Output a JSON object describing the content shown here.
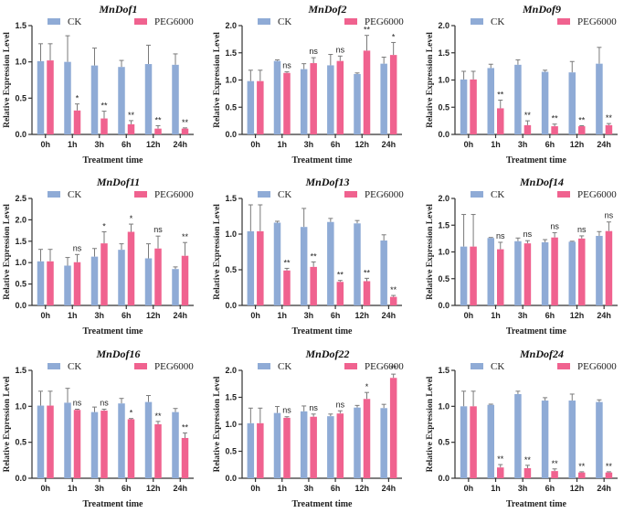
{
  "colors": {
    "CK": "#8fabd6",
    "PEG6000": "#f0628f"
  },
  "chart_data": [
    {
      "type": "bar",
      "title": "MnDof1",
      "xlabel": "Treatment time",
      "ylabel": "Relative Expression Level",
      "categories": [
        "0h",
        "1h",
        "3h",
        "6h",
        "12h",
        "24h"
      ],
      "ylim": [
        0,
        1.5
      ],
      "yticks": [
        "0.0",
        "0.5",
        "1.0",
        "1.5"
      ],
      "yticks_values": [
        0,
        0.5,
        1.0,
        1.5
      ],
      "legend": [
        "CK",
        "PEG6000"
      ],
      "legend_position": "top",
      "grid": false,
      "series": [
        {
          "name": "CK",
          "values": [
            1.01,
            1.0,
            0.95,
            0.93,
            0.97,
            0.96
          ],
          "errors": [
            0.24,
            0.36,
            0.24,
            0.09,
            0.26,
            0.15
          ]
        },
        {
          "name": "PEG6000",
          "values": [
            1.02,
            0.33,
            0.22,
            0.14,
            0.08,
            0.08
          ],
          "errors": [
            0.23,
            0.09,
            0.1,
            0.05,
            0.04,
            0.01
          ]
        }
      ],
      "significance": [
        "",
        "*",
        "**",
        "**",
        "**",
        "**"
      ]
    },
    {
      "type": "bar",
      "title": "MnDof2",
      "xlabel": "Treatment time",
      "ylabel": "Relative Expression Level",
      "categories": [
        "0h",
        "1h",
        "3h",
        "6h",
        "12h",
        "24h"
      ],
      "ylim": [
        0,
        2.0
      ],
      "yticks": [
        "0.0",
        "0.5",
        "1.0",
        "1.5",
        "2.0"
      ],
      "yticks_values": [
        0,
        0.5,
        1.0,
        1.5,
        2.0
      ],
      "legend": [
        "CK",
        "PEG6000"
      ],
      "legend_position": "top",
      "grid": false,
      "series": [
        {
          "name": "CK",
          "values": [
            0.98,
            1.35,
            1.2,
            1.27,
            1.11,
            1.3
          ],
          "errors": [
            0.2,
            0.02,
            0.1,
            0.2,
            0.02,
            0.12
          ]
        },
        {
          "name": "PEG6000",
          "values": [
            0.98,
            1.13,
            1.31,
            1.35,
            1.54,
            1.46
          ],
          "errors": [
            0.2,
            0.02,
            0.1,
            0.09,
            0.28,
            0.23
          ]
        }
      ],
      "significance": [
        "",
        "ns",
        "ns",
        "ns",
        "**",
        "*"
      ]
    },
    {
      "type": "bar",
      "title": "MnDof9",
      "xlabel": "Treatment time",
      "ylabel": "Relative Expression Level",
      "categories": [
        "0h",
        "1h",
        "3h",
        "6h",
        "12h",
        "24h"
      ],
      "ylim": [
        0,
        2.0
      ],
      "yticks": [
        "0.0",
        "0.5",
        "1.0",
        "1.5",
        "2.0"
      ],
      "yticks_values": [
        0,
        0.5,
        1.0,
        1.5,
        2.0
      ],
      "legend": [
        "CK",
        "PEG6000"
      ],
      "legend_position": "top",
      "grid": false,
      "series": [
        {
          "name": "CK",
          "values": [
            1.01,
            1.22,
            1.28,
            1.15,
            1.14,
            1.3
          ],
          "errors": [
            0.15,
            0.07,
            0.09,
            0.03,
            0.2,
            0.3
          ]
        },
        {
          "name": "PEG6000",
          "values": [
            1.01,
            0.48,
            0.17,
            0.15,
            0.15,
            0.17
          ],
          "errors": [
            0.15,
            0.15,
            0.08,
            0.04,
            0.01,
            0.03
          ]
        }
      ],
      "significance": [
        "",
        "**",
        "**",
        "**",
        "**",
        "**"
      ]
    },
    {
      "type": "bar",
      "title": "MnDof11",
      "xlabel": "Treatment time",
      "ylabel": "Relative Expression Level",
      "categories": [
        "0h",
        "1h",
        "3h",
        "6h",
        "12h",
        "24h"
      ],
      "ylim": [
        0,
        2.5
      ],
      "yticks": [
        "0.0",
        "0.5",
        "1.0",
        "1.5",
        "2.0",
        "2.5"
      ],
      "yticks_values": [
        0,
        0.5,
        1.0,
        1.5,
        2.0,
        2.5
      ],
      "legend": [
        "CK",
        "PEG6000"
      ],
      "legend_position": "top",
      "grid": false,
      "series": [
        {
          "name": "CK",
          "values": [
            1.03,
            0.93,
            1.14,
            1.3,
            1.1,
            0.85
          ],
          "errors": [
            0.28,
            0.19,
            0.19,
            0.14,
            0.34,
            0.05
          ]
        },
        {
          "name": "PEG6000",
          "values": [
            1.03,
            1.01,
            1.45,
            1.72,
            1.33,
            1.16
          ],
          "errors": [
            0.28,
            0.18,
            0.27,
            0.18,
            0.29,
            0.31
          ]
        }
      ],
      "significance": [
        "",
        "ns",
        "*",
        "*",
        "ns",
        "**"
      ]
    },
    {
      "type": "bar",
      "title": "MnDof13",
      "xlabel": "Treatment time",
      "ylabel": "Relative Expression Level",
      "categories": [
        "0h",
        "1h",
        "3h",
        "6h",
        "12h",
        "24h"
      ],
      "ylim": [
        0,
        1.5
      ],
      "yticks": [
        "0.0",
        "0.5",
        "1.0",
        "1.5"
      ],
      "yticks_values": [
        0,
        0.5,
        1.0,
        1.5
      ],
      "legend": [
        "CK",
        "PEG6000"
      ],
      "legend_position": "top",
      "grid": false,
      "series": [
        {
          "name": "CK",
          "values": [
            1.04,
            1.16,
            1.1,
            1.17,
            1.15,
            0.91
          ],
          "errors": [
            0.37,
            0.02,
            0.26,
            0.05,
            0.04,
            0.08
          ]
        },
        {
          "name": "PEG6000",
          "values": [
            1.04,
            0.49,
            0.54,
            0.33,
            0.34,
            0.12
          ],
          "errors": [
            0.37,
            0.03,
            0.07,
            0.02,
            0.04,
            0.02
          ]
        }
      ],
      "significance": [
        "",
        "**",
        "**",
        "**",
        "**",
        "**"
      ]
    },
    {
      "type": "bar",
      "title": "MnDof14",
      "xlabel": "Treatment time",
      "ylabel": "Relative Expression Level",
      "categories": [
        "0h",
        "1h",
        "3h",
        "6h",
        "12h",
        "24h"
      ],
      "ylim": [
        0,
        2.0
      ],
      "yticks": [
        "0.0",
        "0.5",
        "1.0",
        "1.5",
        "2.0"
      ],
      "yticks_values": [
        0,
        0.5,
        1.0,
        1.5,
        2.0
      ],
      "legend": [
        "CK",
        "PEG6000"
      ],
      "legend_position": "top",
      "grid": false,
      "series": [
        {
          "name": "CK",
          "values": [
            1.1,
            1.26,
            1.2,
            1.18,
            1.19,
            1.3
          ],
          "errors": [
            0.6,
            0.01,
            0.06,
            0.05,
            0.01,
            0.08
          ]
        },
        {
          "name": "PEG6000",
          "values": [
            1.1,
            1.05,
            1.16,
            1.27,
            1.25,
            1.39
          ],
          "errors": [
            0.6,
            0.13,
            0.05,
            0.09,
            0.05,
            0.17
          ]
        }
      ],
      "significance": [
        "",
        "ns",
        "ns",
        "ns",
        "ns",
        "ns"
      ]
    },
    {
      "type": "bar",
      "title": "MnDof16",
      "xlabel": "Treatment time",
      "ylabel": "Relative Expression Level",
      "categories": [
        "0h",
        "1h",
        "3h",
        "6h",
        "12h",
        "24h"
      ],
      "ylim": [
        0,
        1.5
      ],
      "yticks": [
        "0.0",
        "0.5",
        "1.0",
        "1.5"
      ],
      "yticks_values": [
        0,
        0.5,
        1.0,
        1.5
      ],
      "legend": [
        "CK",
        "PEG6000"
      ],
      "legend_position": "top",
      "grid": false,
      "series": [
        {
          "name": "CK",
          "values": [
            1.01,
            1.05,
            0.92,
            1.04,
            1.06,
            0.92
          ],
          "errors": [
            0.2,
            0.2,
            0.07,
            0.07,
            0.09,
            0.05
          ]
        },
        {
          "name": "PEG6000",
          "values": [
            1.01,
            0.95,
            0.94,
            0.82,
            0.75,
            0.56
          ],
          "errors": [
            0.2,
            0.01,
            0.02,
            0.01,
            0.04,
            0.07
          ]
        }
      ],
      "significance": [
        "",
        "ns",
        "ns",
        "*",
        "**",
        "**"
      ]
    },
    {
      "type": "bar",
      "title": "MnDof22",
      "xlabel": "Treatment time",
      "ylabel": "Relative Expression Level",
      "categories": [
        "0h",
        "1h",
        "3h",
        "6h",
        "12h",
        "24h"
      ],
      "ylim": [
        0,
        2.0
      ],
      "yticks": [
        "0.0",
        "0.5",
        "1.0",
        "1.5",
        "2.0"
      ],
      "yticks_values": [
        0,
        0.5,
        1.0,
        1.5,
        2.0
      ],
      "legend": [
        "CK",
        "PEG6000"
      ],
      "legend_position": "top",
      "grid": false,
      "series": [
        {
          "name": "CK",
          "values": [
            1.02,
            1.21,
            1.24,
            1.15,
            1.31,
            1.3
          ],
          "errors": [
            0.28,
            0.12,
            0.1,
            0.04,
            0.04,
            0.07
          ]
        },
        {
          "name": "PEG6000",
          "values": [
            1.02,
            1.12,
            1.14,
            1.2,
            1.47,
            1.86
          ],
          "errors": [
            0.28,
            0.02,
            0.05,
            0.05,
            0.12,
            0.07
          ]
        }
      ],
      "significance": [
        "",
        "ns",
        "ns",
        "ns",
        "*",
        "**"
      ]
    },
    {
      "type": "bar",
      "title": "MnDof24",
      "xlabel": "Treatment time",
      "ylabel": "Relative Expression Level",
      "categories": [
        "0h",
        "1h",
        "3h",
        "6h",
        "12h",
        "24h"
      ],
      "ylim": [
        0,
        1.5
      ],
      "yticks": [
        "0.0",
        "0.5",
        "1.0",
        "1.5"
      ],
      "yticks_values": [
        0,
        0.5,
        1.0,
        1.5
      ],
      "legend": [
        "CK",
        "PEG6000"
      ],
      "legend_position": "top",
      "grid": false,
      "series": [
        {
          "name": "CK",
          "values": [
            1.0,
            1.02,
            1.17,
            1.08,
            1.08,
            1.06
          ],
          "errors": [
            0.21,
            0.01,
            0.04,
            0.04,
            0.09,
            0.03
          ]
        },
        {
          "name": "PEG6000",
          "values": [
            1.0,
            0.15,
            0.14,
            0.1,
            0.08,
            0.08
          ],
          "errors": [
            0.21,
            0.04,
            0.04,
            0.03,
            0.01,
            0.01
          ]
        }
      ],
      "significance": [
        "",
        "**",
        "**",
        "**",
        "**",
        "**"
      ]
    }
  ]
}
